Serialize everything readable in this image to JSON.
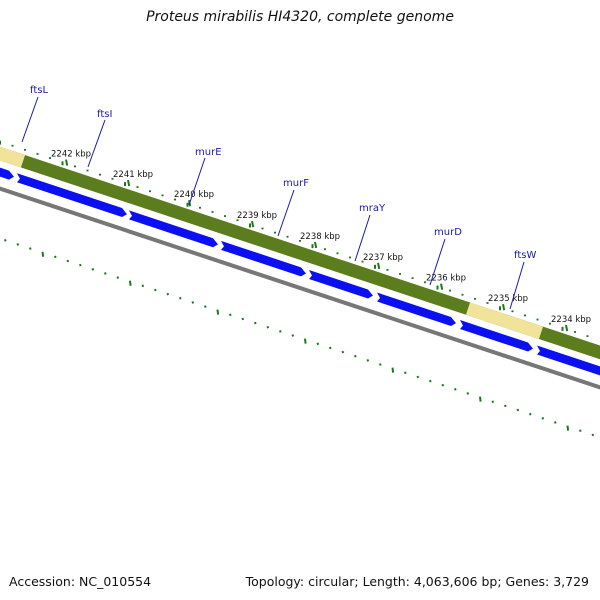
{
  "title": "Proteus mirabilis HI4320, complete genome",
  "footer": {
    "accession": "Accession: NC_010554",
    "stats": "Topology: circular; Length: 4,063,606 bp; Genes: 3,729"
  },
  "colors": {
    "background": "#ffffff",
    "cds": "#0a10ef",
    "gene_feature": "#5c7d1e",
    "gene_feature_highlight": "#f1e39a",
    "backbone": "#777777",
    "skew_marks": "#1a7a1a",
    "label": "#1a1aa8"
  },
  "scale_ticks": [
    "2242 kbp",
    "2241 kbp",
    "2240 kbp",
    "2239 kbp",
    "2238 kbp",
    "2237 kbp",
    "2236 kbp",
    "2235 kbp",
    "2234 kbp"
  ],
  "genes": [
    "ftsL",
    "ftsI",
    "murE",
    "murF",
    "mraY",
    "murD",
    "ftsW"
  ]
}
